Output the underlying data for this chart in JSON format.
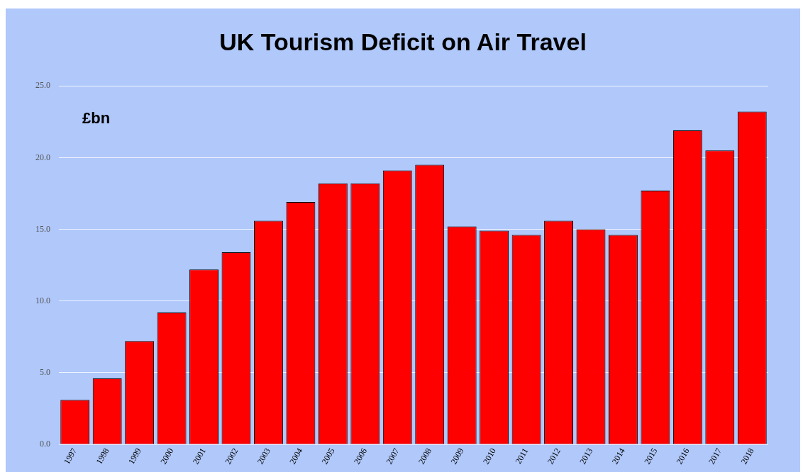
{
  "chart_data": {
    "type": "bar",
    "title": "UK Tourism Deficit on Air Travel",
    "annotations": [
      "£bn"
    ],
    "categories": [
      "1997",
      "1998",
      "1999",
      "2000",
      "2001",
      "2002",
      "2003",
      "2004",
      "2005",
      "2006",
      "2007",
      "2008",
      "2009",
      "2010",
      "2011",
      "2012",
      "2013",
      "2014",
      "2015",
      "2016",
      "2017",
      "2018"
    ],
    "values": [
      3.1,
      4.6,
      7.2,
      9.2,
      12.2,
      13.4,
      15.6,
      16.9,
      18.2,
      18.2,
      19.1,
      19.5,
      15.2,
      14.9,
      14.6,
      15.6,
      15.0,
      14.6,
      17.7,
      21.9,
      20.5,
      23.2
    ],
    "color": "#ff0000",
    "ylim": [
      0,
      25
    ],
    "yticks": [
      {
        "value": 0,
        "label": "0.0"
      },
      {
        "value": 5,
        "label": "5.0"
      },
      {
        "value": 10,
        "label": "10.0"
      },
      {
        "value": 15,
        "label": "15.0"
      },
      {
        "value": 20,
        "label": "20.0"
      },
      {
        "value": 25,
        "label": "25.0"
      }
    ],
    "grid": "y",
    "legend": false
  }
}
